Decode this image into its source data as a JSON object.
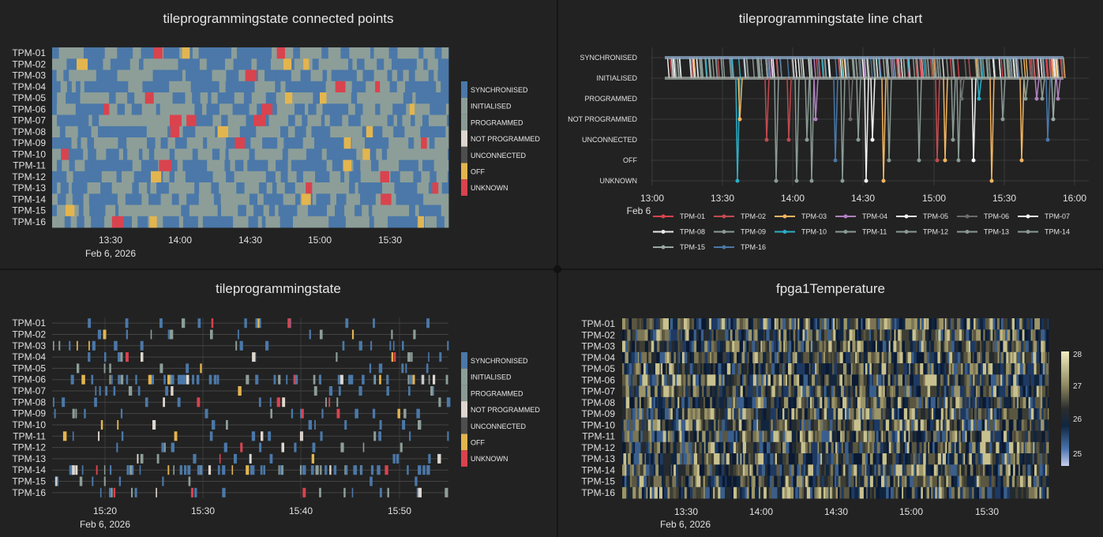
{
  "colors": {
    "SYNCHRONISED": "#4b78a8",
    "INITIALISED": "#8d9e98",
    "PROGRAMMED": "#8a9a94",
    "NOT PROGRAMMED": "#ded7d0",
    "UNCONNECTED": "#4e4e4e",
    "OFF": "#e3b54f",
    "UNKNOWN": "#d9434e"
  },
  "state_legend": [
    "SYNCHRONISED",
    "INITIALISED",
    "PROGRAMMED",
    "NOT PROGRAMMED",
    "UNCONNECTED",
    "OFF",
    "UNKNOWN"
  ],
  "tiles": [
    "TPM-01",
    "TPM-02",
    "TPM-03",
    "TPM-04",
    "TPM-05",
    "TPM-06",
    "TPM-07",
    "TPM-08",
    "TPM-09",
    "TPM-10",
    "TPM-11",
    "TPM-12",
    "TPM-13",
    "TPM-14",
    "TPM-15",
    "TPM-16"
  ],
  "panels": {
    "tl": {
      "title": "tileprogrammingstate connected points",
      "xticks": [
        "13:30",
        "14:00",
        "14:30",
        "15:00",
        "15:30"
      ],
      "date": "Feb 6, 2026"
    },
    "tr": {
      "title": "tileprogrammingstate line chart",
      "xticks": [
        "13:00",
        "13:30",
        "14:00",
        "14:30",
        "15:00",
        "15:30",
        "16:00"
      ],
      "date": "Feb 6"
    },
    "bl": {
      "title": "tileprogrammingstate",
      "xticks": [
        "15:20",
        "15:30",
        "15:40",
        "15:50"
      ],
      "date": "Feb 6, 2026"
    },
    "br": {
      "title": "fpga1Temperature",
      "xticks": [
        "13:30",
        "14:00",
        "14:30",
        "15:00",
        "15:30"
      ],
      "date": "Feb 6, 2026",
      "colorbar_ticks": [
        "28",
        "27",
        "26",
        "25"
      ]
    }
  },
  "chart_data": [
    {
      "type": "heatmap",
      "title": "tileprogrammingstate connected points",
      "x_range": [
        "2026-02-06 13:10",
        "2026-02-06 15:55"
      ],
      "y": "tiles",
      "values": "categorical tile programming state over time (SYNCHRONISED/INITIALISED dominant, sparse OFF and UNKNOWN events)"
    },
    {
      "type": "line",
      "title": "tileprogrammingstate line chart",
      "y_categories": [
        "UNKNOWN",
        "OFF",
        "UNCONNECTED",
        "NOT PROGRAMMED",
        "PROGRAMMED",
        "INITIALISED",
        "SYNCHRONISED"
      ],
      "x_range": [
        "2026-02-06 13:00",
        "2026-02-06 16:00"
      ],
      "series": [
        {
          "name": "TPM-01",
          "color": "#d9434e"
        },
        {
          "name": "TPM-02",
          "color": "#c24a4f"
        },
        {
          "name": "TPM-03",
          "color": "#f2b560"
        },
        {
          "name": "TPM-04",
          "color": "#b07fc0"
        },
        {
          "name": "TPM-05",
          "color": "#f2f2f2"
        },
        {
          "name": "TPM-06",
          "color": "#6c6c6c"
        },
        {
          "name": "TPM-07",
          "color": "#f4f4f4"
        },
        {
          "name": "TPM-08",
          "color": "#e8e8e8"
        },
        {
          "name": "TPM-09",
          "color": "#8a9a94"
        },
        {
          "name": "TPM-10",
          "color": "#2ab0c8"
        },
        {
          "name": "TPM-11",
          "color": "#8a9a94"
        },
        {
          "name": "TPM-12",
          "color": "#8a9a94"
        },
        {
          "name": "TPM-13",
          "color": "#8a9a94"
        },
        {
          "name": "TPM-14",
          "color": "#8a9a94"
        },
        {
          "name": "TPM-15",
          "color": "#9aa8a2"
        },
        {
          "name": "TPM-16",
          "color": "#4b78a8"
        }
      ]
    },
    {
      "type": "heatmap",
      "title": "tileprogrammingstate",
      "x_range": [
        "2026-02-06 15:14",
        "2026-02-06 15:55"
      ],
      "y": "tiles",
      "values": "sparse state change events per tile"
    },
    {
      "type": "heatmap",
      "title": "fpga1Temperature",
      "x_range": [
        "2026-02-06 13:10",
        "2026-02-06 15:55"
      ],
      "y": "tiles",
      "colorbar_range": [
        24.8,
        28.2
      ]
    }
  ]
}
